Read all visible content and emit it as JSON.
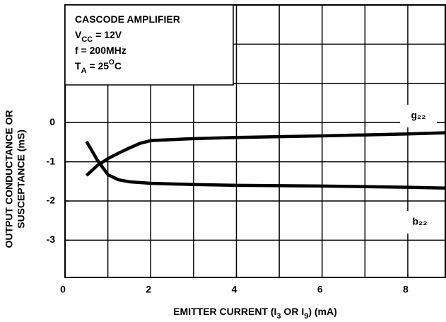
{
  "chart_data": {
    "type": "line",
    "annotation": [
      [
        "CASCODE AMPLIFIER"
      ],
      [
        "V",
        "CC",
        " = 12V"
      ],
      [
        "f = 200MHz"
      ],
      [
        "T",
        "A",
        " = 25",
        "O",
        "C"
      ]
    ],
    "xlabel": [
      "EMITTER CURRENT (I",
      "3",
      " OR I",
      "9",
      ") (mA)"
    ],
    "ylabel": [
      "OUTPUT CONDUCTANCE OR",
      "SUSCEPTANCE (mS)"
    ],
    "xlim": [
      0,
      8.875
    ],
    "ylim": [
      -3.95,
      3
    ],
    "xticks": [
      0,
      2,
      4,
      6,
      8
    ],
    "yticks": [
      -3,
      -2,
      -1,
      0
    ],
    "xgrid": [
      1,
      2,
      3,
      4,
      5,
      6,
      7,
      8
    ],
    "ygrid": [
      -3,
      -2,
      -1,
      0,
      1,
      2
    ],
    "series": [
      {
        "name": "g₂₂",
        "color": "#000000",
        "x": [
          0.5,
          0.75,
          1,
          1.25,
          1.5,
          1.75,
          2,
          3,
          4,
          6,
          8,
          8.875
        ],
        "values": [
          -1.35,
          -1.1,
          -0.92,
          -0.78,
          -0.65,
          -0.53,
          -0.46,
          -0.41,
          -0.38,
          -0.34,
          -0.29,
          -0.26
        ]
      },
      {
        "name": "b₂₂",
        "color": "#000000",
        "x": [
          0.5,
          0.75,
          1,
          1.25,
          1.5,
          2,
          3,
          4,
          6,
          8,
          8.875
        ],
        "values": [
          -0.48,
          -0.95,
          -1.33,
          -1.46,
          -1.51,
          -1.55,
          -1.58,
          -1.6,
          -1.62,
          -1.65,
          -1.67
        ]
      }
    ]
  }
}
